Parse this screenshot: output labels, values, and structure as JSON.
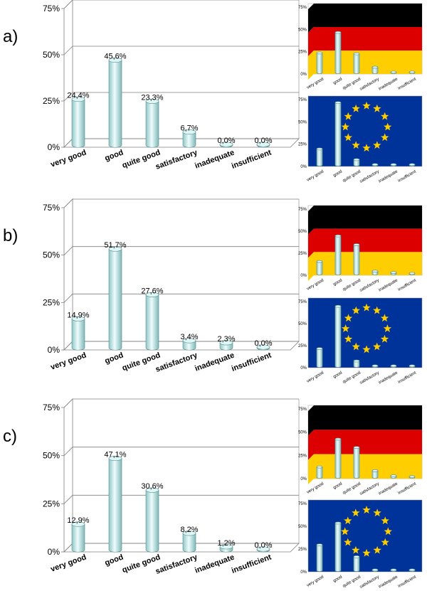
{
  "chart_data": [
    {
      "type": "bar",
      "panel": "a)",
      "categories": [
        "very good",
        "good",
        "quite good",
        "satisfactory",
        "inadequate",
        "insufficient"
      ],
      "values": [
        24.4,
        45.6,
        23.3,
        6.7,
        0.0,
        0.0
      ],
      "value_labels": [
        "24,4%",
        "45,6%",
        "23,3%",
        "6,7%",
        "0,0%",
        "0,0%"
      ],
      "yticks": [
        "0%",
        "25%",
        "50%",
        "75%"
      ],
      "ylim": [
        0,
        75
      ],
      "inset_germany": [
        22,
        45,
        21,
        6,
        0.5,
        0.5
      ],
      "inset_eu": [
        18,
        70,
        6,
        0.5,
        0.5,
        0.5
      ]
    },
    {
      "type": "bar",
      "panel": "b)",
      "categories": [
        "very good",
        "good",
        "quite good",
        "satisfactory",
        "inadequate",
        "insufficient"
      ],
      "values": [
        14.9,
        51.7,
        27.6,
        3.4,
        2.3,
        0.0
      ],
      "value_labels": [
        "14,9%",
        "51,7%",
        "27,6%",
        "3,4%",
        "2,3%",
        "0,0%"
      ],
      "yticks": [
        "0%",
        "25%",
        "50%",
        "75%"
      ],
      "ylim": [
        0,
        75
      ],
      "inset_germany": [
        14,
        43,
        33,
        3,
        1.5,
        0.5
      ],
      "inset_eu": [
        20,
        68,
        6,
        0.5,
        0.5,
        0.5
      ]
    },
    {
      "type": "bar",
      "panel": "c)",
      "categories": [
        "very good",
        "good",
        "quite good",
        "satisfactory",
        "inadequate",
        "insufficient"
      ],
      "values": [
        12.9,
        47.1,
        30.6,
        8.2,
        1.2,
        0.0
      ],
      "value_labels": [
        "12,9%",
        "47,1%",
        "30,6%",
        "8,2%",
        "1,2%",
        "0,0%"
      ],
      "yticks": [
        "0%",
        "25%",
        "50%",
        "75%"
      ],
      "ylim": [
        0,
        75
      ],
      "inset_germany": [
        11,
        41,
        32,
        7,
        1.5,
        0.5
      ],
      "inset_eu": [
        28,
        52,
        15,
        0.5,
        0.5,
        0.5
      ]
    }
  ],
  "colors": {
    "bar_fill": "#c8ecec",
    "bar_stroke": "#5a8c8c",
    "grid": "#808080",
    "germany": [
      "#000000",
      "#dd0000",
      "#ffce00"
    ],
    "eu_blue": "#003399",
    "eu_star": "#ffcc00"
  }
}
